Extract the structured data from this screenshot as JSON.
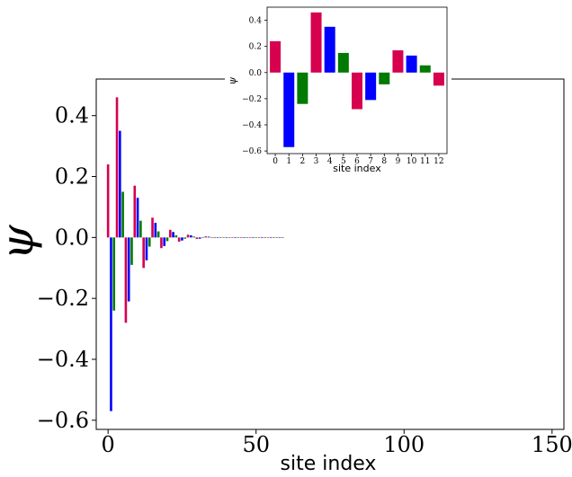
{
  "chart_data": [
    {
      "type": "bar",
      "panel": "main",
      "xlabel": "site index",
      "ylabel": "ψ",
      "xlim": [
        -4,
        154
      ],
      "ylim": [
        -0.63,
        0.52
      ],
      "xticks": [
        0,
        50,
        100,
        150
      ],
      "xtick_labels": [
        "0",
        "50",
        "100",
        "150"
      ],
      "yticks": [
        -0.6,
        -0.4,
        -0.2,
        0.0,
        0.2,
        0.4
      ],
      "ytick_labels": [
        "−0.6",
        "−0.4",
        "−0.2",
        "0.0",
        "0.2",
        "0.4"
      ],
      "x": [
        0,
        1,
        2,
        3,
        4,
        5,
        6,
        7,
        8,
        9,
        10,
        11,
        12,
        13,
        14,
        15,
        16,
        17,
        18,
        19,
        20,
        21,
        22,
        23,
        24,
        25,
        26,
        27,
        28,
        29,
        30,
        31,
        32,
        33,
        34,
        35,
        36,
        37,
        38,
        39,
        40,
        41,
        42,
        43,
        44,
        45,
        46,
        47,
        48,
        49,
        50,
        51,
        52,
        53,
        54,
        55,
        56,
        57,
        58,
        59
      ],
      "values": [
        0.24,
        -0.57,
        -0.24,
        0.46,
        0.35,
        0.15,
        -0.28,
        -0.21,
        -0.09,
        0.17,
        0.13,
        0.055,
        -0.1,
        -0.075,
        -0.03,
        0.065,
        0.048,
        0.02,
        -0.035,
        -0.028,
        -0.012,
        0.025,
        0.018,
        0.007,
        -0.014,
        -0.01,
        -0.004,
        0.009,
        0.007,
        0.003,
        -0.005,
        -0.004,
        -0.0015,
        0.0035,
        0.0025,
        0.001,
        -0.002,
        -0.0015,
        -0.0006,
        0.0013,
        0.001,
        0.0004,
        -0.0008,
        -0.0006,
        -0.0002,
        0.0005,
        0.0004,
        0.0002,
        -0.0003,
        -0.0002,
        -0.0001,
        0.0002,
        0.00015,
        0.0001,
        -0.0001,
        -0.0001,
        0.0,
        0.0001,
        0.0001,
        0.0
      ],
      "colors": [
        "#d6004f",
        "#0000ff",
        "#007a00"
      ],
      "color_cycle": "red, blue, green repeating by site index",
      "grid": false
    },
    {
      "type": "bar",
      "panel": "inset",
      "xlabel": "site index",
      "ylabel": "ψ",
      "xlim": [
        -0.6,
        12.6
      ],
      "ylim": [
        -0.62,
        0.5
      ],
      "xticks": [
        0,
        1,
        2,
        3,
        4,
        5,
        6,
        7,
        8,
        9,
        10,
        11,
        12
      ],
      "xtick_labels": [
        "0",
        "1",
        "2",
        "3",
        "4",
        "5",
        "6",
        "7",
        "8",
        "9",
        "10",
        "11",
        "12"
      ],
      "yticks": [
        -0.6,
        -0.4,
        -0.2,
        0.0,
        0.2,
        0.4
      ],
      "ytick_labels": [
        "−0.6",
        "−0.4",
        "−0.2",
        "0.0",
        "0.2",
        "0.4"
      ],
      "x": [
        0,
        1,
        2,
        3,
        4,
        5,
        6,
        7,
        8,
        9,
        10,
        11,
        12
      ],
      "values": [
        0.24,
        -0.57,
        -0.24,
        0.46,
        0.35,
        0.15,
        -0.28,
        -0.21,
        -0.09,
        0.17,
        0.13,
        0.055,
        -0.1
      ],
      "colors": [
        "#d6004f",
        "#0000ff",
        "#007a00"
      ],
      "color_cycle": "red, blue, green repeating by site index",
      "grid": false
    }
  ]
}
